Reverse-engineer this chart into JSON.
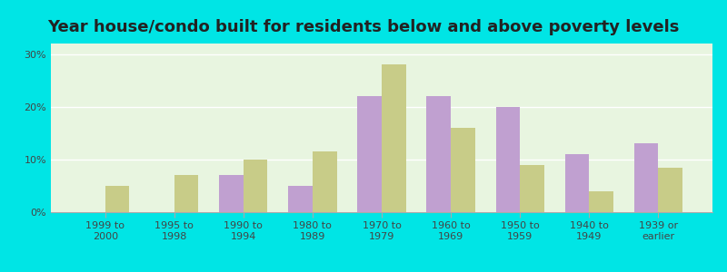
{
  "title": "Year house/condo built for residents below and above poverty levels",
  "categories": [
    "1999 to\n2000",
    "1995 to\n1998",
    "1990 to\n1994",
    "1980 to\n1989",
    "1970 to\n1979",
    "1960 to\n1969",
    "1950 to\n1959",
    "1940 to\n1949",
    "1939 or\nearlier"
  ],
  "below_poverty": [
    0,
    0,
    7,
    5,
    22,
    22,
    20,
    11,
    13
  ],
  "above_poverty": [
    5,
    7,
    10,
    11.5,
    28,
    16,
    9,
    4,
    8.5
  ],
  "below_color": "#c0a0d0",
  "above_color": "#c8cc88",
  "yticks": [
    0,
    10,
    20,
    30
  ],
  "ylim": [
    0,
    32
  ],
  "background_color": "#e8f5e0",
  "outer_background": "#00e5e5",
  "title_fontsize": 13,
  "tick_fontsize": 8,
  "legend_fontsize": 9
}
